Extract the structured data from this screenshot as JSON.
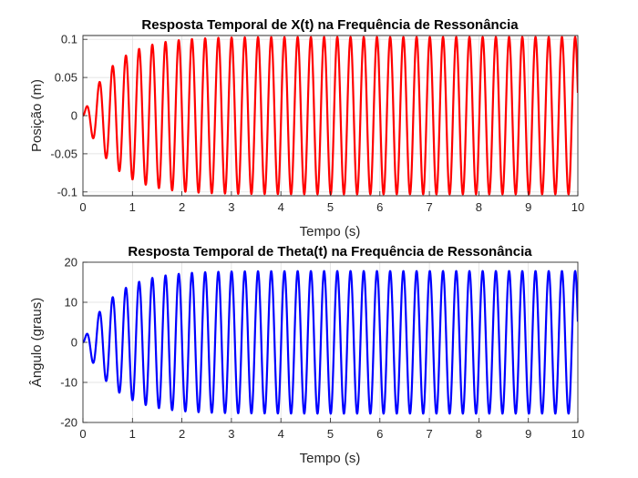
{
  "chart_data": [
    {
      "type": "line",
      "title": "Resposta Temporal de X(t) na Frequência de Ressonância",
      "xlabel": "Tempo (s)",
      "ylabel": "Posição (m)",
      "xlim": [
        0,
        10
      ],
      "ylim": [
        -0.105,
        0.105
      ],
      "xticks": [
        "0",
        "1",
        "2",
        "3",
        "4",
        "5",
        "6",
        "7",
        "8",
        "9",
        "10"
      ],
      "yticks": [
        "-0.1",
        "-0.05",
        "0",
        "0.05",
        "0.1"
      ],
      "ytick_values": [
        -0.1,
        -0.05,
        0,
        0.05,
        0.1
      ],
      "grid": true,
      "color": "#ff0000",
      "series": [
        {
          "signal": "resonant-sine",
          "amplitude": 0.103,
          "period_s": 0.267,
          "rise_time_s": 0.6,
          "t_start": 0,
          "t_end": 10,
          "first_peaks": [
            {
              "t": 0.13,
              "y": 0.025
            },
            {
              "t": 0.28,
              "y": -0.045
            },
            {
              "t": 0.41,
              "y": 0.061
            },
            {
              "t": 0.55,
              "y": -0.072
            },
            {
              "t": 0.68,
              "y": 0.08
            },
            {
              "t": 0.82,
              "y": -0.087
            },
            {
              "t": 0.95,
              "y": 0.091
            },
            {
              "t": 1.08,
              "y": -0.094
            }
          ]
        }
      ]
    },
    {
      "type": "line",
      "title": "Resposta Temporal de Theta(t) na Frequência de Ressonância",
      "xlabel": "Tempo (s)",
      "ylabel": "Ângulo (graus)",
      "xlim": [
        0,
        10
      ],
      "ylim": [
        -20,
        20
      ],
      "xticks": [
        "0",
        "1",
        "2",
        "3",
        "4",
        "5",
        "6",
        "7",
        "8",
        "9",
        "10"
      ],
      "yticks": [
        "-20",
        "-10",
        "0",
        "10",
        "20"
      ],
      "ytick_values": [
        -20,
        -10,
        0,
        10,
        20
      ],
      "grid": true,
      "color": "#0000ff",
      "series": [
        {
          "signal": "resonant-sine",
          "amplitude": 17.8,
          "period_s": 0.267,
          "rise_time_s": 0.6,
          "t_start": 0,
          "t_end": 10,
          "first_peaks": [
            {
              "t": 0.13,
              "y": 4.5
            },
            {
              "t": 0.25,
              "y": -8.0
            },
            {
              "t": 0.4,
              "y": 10.5
            },
            {
              "t": 0.55,
              "y": -12.5
            },
            {
              "t": 0.68,
              "y": 13.8
            },
            {
              "t": 0.82,
              "y": -15.0
            },
            {
              "t": 0.95,
              "y": 15.5
            },
            {
              "t": 1.08,
              "y": -16.2
            }
          ]
        }
      ]
    }
  ]
}
